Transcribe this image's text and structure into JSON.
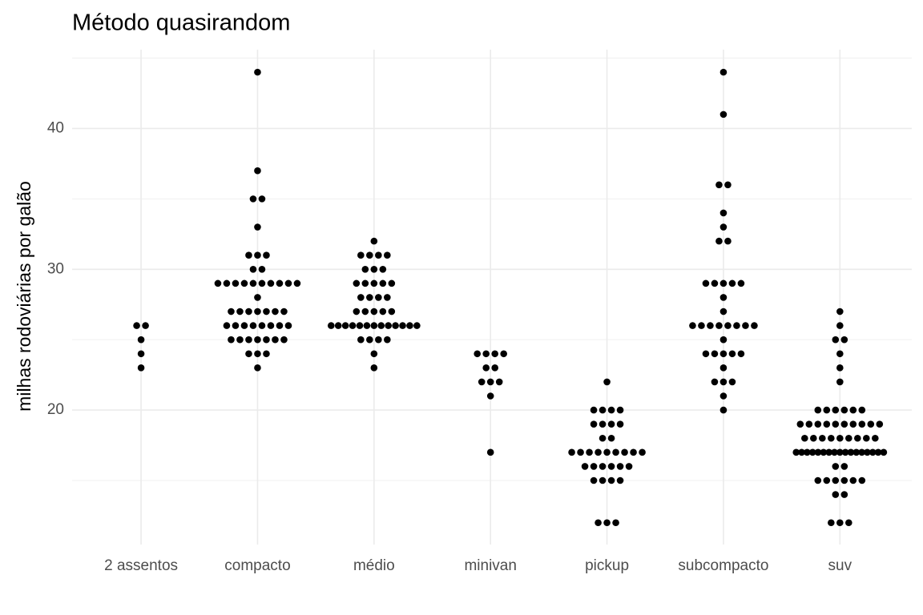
{
  "chart_data": {
    "type": "beeswarm",
    "title": "Método quasirandom",
    "y_label": "milhas rodoviárias por galão",
    "categories": [
      "2 assentos",
      "compacto",
      "médio",
      "minivan",
      "pickup",
      "subcompacto",
      "suv"
    ],
    "values": [
      [
        26,
        24,
        23,
        26,
        25
      ],
      [
        44,
        37,
        35,
        35,
        33,
        31,
        31,
        31,
        30,
        30,
        29,
        29,
        29,
        29,
        29,
        29,
        29,
        29,
        29,
        29,
        28,
        27,
        27,
        27,
        27,
        27,
        27,
        27,
        26,
        26,
        26,
        26,
        26,
        26,
        26,
        26,
        25,
        25,
        25,
        25,
        25,
        25,
        25,
        24,
        24,
        24,
        23
      ],
      [
        32,
        31,
        31,
        31,
        31,
        30,
        30,
        30,
        29,
        29,
        29,
        29,
        29,
        28,
        28,
        28,
        28,
        27,
        27,
        27,
        27,
        27,
        26,
        26,
        26,
        26,
        26,
        26,
        26,
        26,
        26,
        26,
        26,
        26,
        26,
        25,
        25,
        25,
        25,
        24,
        23
      ],
      [
        24,
        24,
        24,
        24,
        23,
        23,
        22,
        22,
        22,
        21,
        17
      ],
      [
        22,
        20,
        20,
        20,
        20,
        19,
        19,
        19,
        19,
        18,
        18,
        17,
        17,
        17,
        17,
        17,
        17,
        17,
        17,
        17,
        16,
        16,
        16,
        16,
        16,
        16,
        15,
        15,
        15,
        15,
        12,
        12,
        12
      ],
      [
        44,
        41,
        36,
        36,
        34,
        33,
        32,
        32,
        29,
        29,
        29,
        29,
        29,
        28,
        27,
        26,
        26,
        26,
        26,
        26,
        26,
        26,
        26,
        25,
        24,
        24,
        24,
        24,
        24,
        23,
        22,
        22,
        22,
        21,
        20
      ],
      [
        27,
        26,
        25,
        25,
        24,
        23,
        22,
        20,
        20,
        20,
        20,
        20,
        20,
        19,
        19,
        19,
        19,
        19,
        19,
        19,
        19,
        19,
        19,
        18,
        18,
        18,
        18,
        18,
        18,
        18,
        18,
        18,
        17,
        17,
        17,
        17,
        17,
        17,
        17,
        17,
        17,
        17,
        17,
        17,
        17,
        17,
        17,
        17,
        17,
        16,
        16,
        15,
        15,
        15,
        15,
        15,
        15,
        14,
        14,
        12,
        12,
        12
      ]
    ],
    "color": "#000000",
    "ylim": [
      10.45,
      45.6
    ],
    "yticks": [
      20,
      30,
      40
    ],
    "minor_yticks": [
      15,
      25,
      35,
      45
    ],
    "grid": true
  }
}
